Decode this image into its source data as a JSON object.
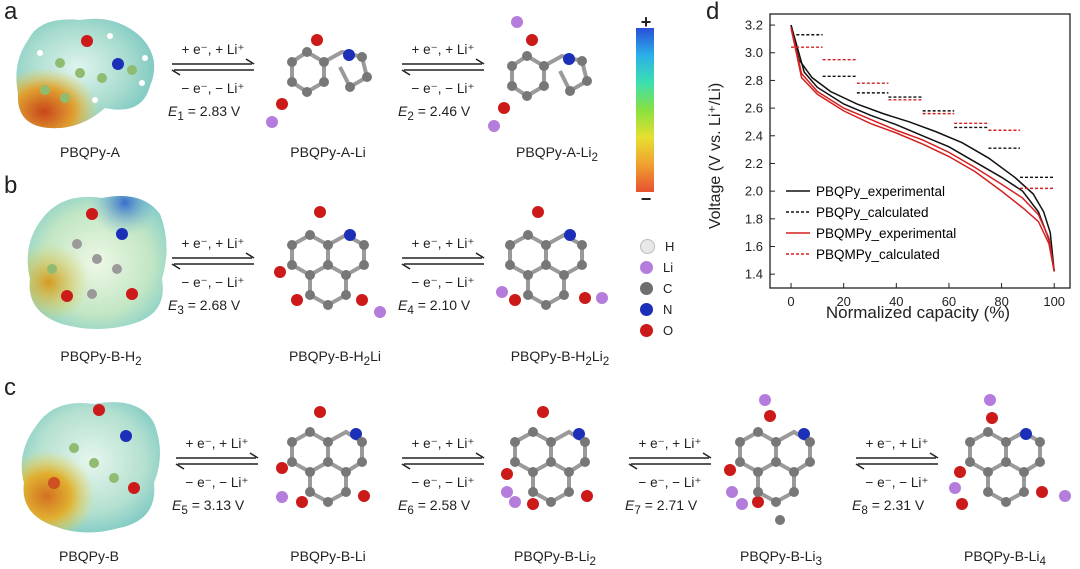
{
  "panels": {
    "a": "a",
    "b": "b",
    "c": "c",
    "d": "d"
  },
  "molecules": {
    "a0": "PBQPy-A",
    "a1": "PBQPy-A-Li",
    "a2": "PBQPy-A-Li",
    "b0": "PBQPy-B-H",
    "b1": "PBQPy-B-H",
    "b1b": "Li",
    "b2": "PBQPy-B-H",
    "b2b": "Li",
    "c0": "PBQPy-B",
    "c1": "PBQPy-B-Li",
    "c2": "PBQPy-B-Li",
    "c3": "PBQPy-B-Li",
    "c4": "PBQPy-B-Li"
  },
  "subscripts": {
    "two": "2",
    "three": "3",
    "four": "4"
  },
  "reaction": {
    "forward": "+ e⁻,  + Li⁺",
    "backward": "− e⁻,  − Li⁺"
  },
  "energies": {
    "E1": {
      "sym": "E",
      "sub": "1",
      "val": " = 2.83 V"
    },
    "E2": {
      "sym": "E",
      "sub": "2",
      "val": " = 2.46 V"
    },
    "E3": {
      "sym": "E",
      "sub": "3",
      "val": " = 2.68 V"
    },
    "E4": {
      "sym": "E",
      "sub": "4",
      "val": " = 2.10 V"
    },
    "E5": {
      "sym": "E",
      "sub": "5",
      "val": " = 3.13 V"
    },
    "E6": {
      "sym": "E",
      "sub": "6",
      "val": " = 2.58 V"
    },
    "E7": {
      "sym": "E",
      "sub": "7",
      "val": " = 2.71 V"
    },
    "E8": {
      "sym": "E",
      "sub": "8",
      "val": " = 2.31 V"
    }
  },
  "colorbar": {
    "plus": "+",
    "minus": "−"
  },
  "atom_legend": [
    {
      "label": "H",
      "color": "#e8e8e8"
    },
    {
      "label": "Li",
      "color": "#b57ddb"
    },
    {
      "label": "C",
      "color": "#6e6e6e"
    },
    {
      "label": "N",
      "color": "#1b2fb8"
    },
    {
      "label": "O",
      "color": "#cc1a1a"
    }
  ],
  "chart_data": {
    "type": "line",
    "xlabel": "Normalized capacity (%)",
    "ylabel": "Voltage (V vs. Li⁺/Li)",
    "xlim": [
      -8,
      106
    ],
    "ylim": [
      1.3,
      3.28
    ],
    "xticks": [
      "0",
      "20",
      "40",
      "60",
      "80",
      "100"
    ],
    "yticks": [
      "1.4",
      "1.6",
      "1.8",
      "2.0",
      "2.2",
      "2.4",
      "2.6",
      "2.8",
      "3.0",
      "3.2"
    ],
    "series": [
      {
        "name": "PBQPy_experimental",
        "style": "solid",
        "color": "#111111",
        "charge": [
          [
            0,
            3.2
          ],
          [
            5,
            2.86
          ],
          [
            10,
            2.75
          ],
          [
            20,
            2.63
          ],
          [
            30,
            2.55
          ],
          [
            40,
            2.48
          ],
          [
            50,
            2.4
          ],
          [
            60,
            2.32
          ],
          [
            70,
            2.21
          ],
          [
            80,
            2.1
          ],
          [
            88,
            2.0
          ],
          [
            94,
            1.85
          ],
          [
            98,
            1.65
          ],
          [
            100,
            1.42
          ]
        ],
        "discharge": [
          [
            0,
            3.2
          ],
          [
            3,
            2.95
          ],
          [
            8,
            2.82
          ],
          [
            15,
            2.72
          ],
          [
            25,
            2.63
          ],
          [
            35,
            2.56
          ],
          [
            45,
            2.5
          ],
          [
            55,
            2.43
          ],
          [
            65,
            2.35
          ],
          [
            75,
            2.24
          ],
          [
            85,
            2.1
          ],
          [
            92,
            1.98
          ],
          [
            96,
            1.85
          ],
          [
            98.5,
            1.7
          ],
          [
            100,
            1.42
          ]
        ]
      },
      {
        "name": "PBQPy_calculated",
        "style": "dashed",
        "color": "#111111",
        "segments": [
          [
            2,
            12,
            3.13
          ],
          [
            12,
            25,
            2.83
          ],
          [
            25,
            37,
            2.71
          ],
          [
            37,
            50,
            2.68
          ],
          [
            50,
            62,
            2.58
          ],
          [
            62,
            75,
            2.46
          ],
          [
            75,
            87,
            2.31
          ],
          [
            87,
            100,
            2.1
          ]
        ]
      },
      {
        "name": "PBQMPy_experimental",
        "style": "solid",
        "color": "#d42020",
        "charge": [
          [
            0,
            3.18
          ],
          [
            4,
            2.85
          ],
          [
            10,
            2.72
          ],
          [
            20,
            2.6
          ],
          [
            30,
            2.52
          ],
          [
            40,
            2.44
          ],
          [
            50,
            2.37
          ],
          [
            60,
            2.28
          ],
          [
            70,
            2.17
          ],
          [
            80,
            2.05
          ],
          [
            88,
            1.95
          ],
          [
            94,
            1.83
          ],
          [
            98,
            1.66
          ],
          [
            100,
            1.42
          ]
        ],
        "discharge": [
          [
            0,
            3.18
          ],
          [
            4,
            2.82
          ],
          [
            10,
            2.7
          ],
          [
            20,
            2.58
          ],
          [
            30,
            2.49
          ],
          [
            40,
            2.42
          ],
          [
            50,
            2.34
          ],
          [
            60,
            2.25
          ],
          [
            70,
            2.14
          ],
          [
            80,
            2.0
          ],
          [
            88,
            1.88
          ],
          [
            94,
            1.78
          ],
          [
            98,
            1.62
          ],
          [
            100,
            1.42
          ]
        ]
      },
      {
        "name": "PBQMPy_calculated",
        "style": "dashed",
        "color": "#d42020",
        "segments": [
          [
            0,
            12,
            3.04
          ],
          [
            12,
            25,
            2.95
          ],
          [
            25,
            37,
            2.78
          ],
          [
            37,
            50,
            2.66
          ],
          [
            50,
            62,
            2.56
          ],
          [
            62,
            75,
            2.49
          ],
          [
            75,
            87,
            2.44
          ],
          [
            87,
            100,
            2.02
          ]
        ]
      }
    ]
  }
}
